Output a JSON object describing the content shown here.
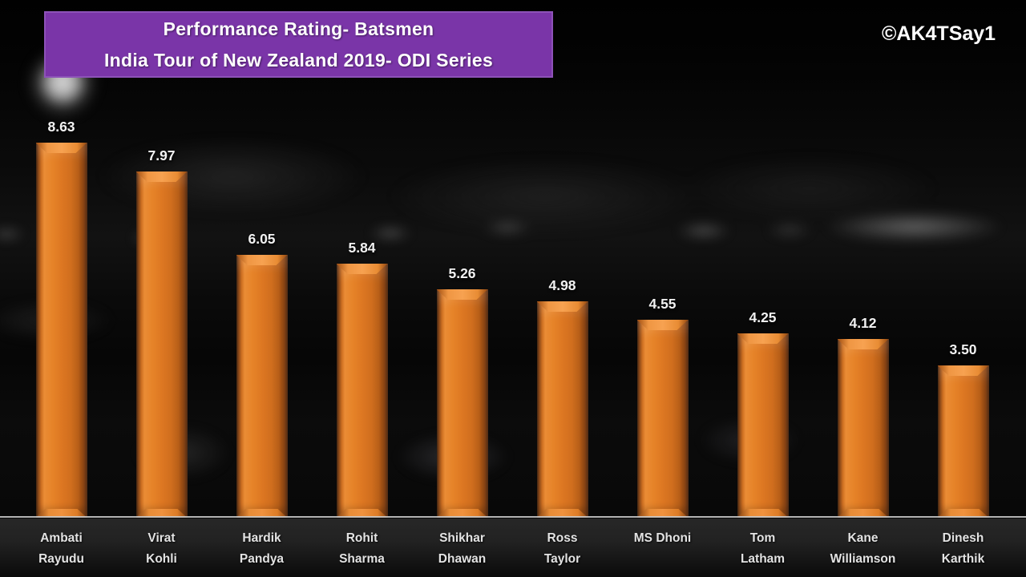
{
  "title": {
    "line1": "Performance Rating- Batsmen",
    "line2": "India Tour of New Zealand 2019- ODI Series",
    "bg_color": "#7a35a8",
    "border_color": "#8d52b8",
    "text_color": "#ffffff"
  },
  "watermark": "©AK4TSay1",
  "colors": {
    "bar_fill": "#dd7722",
    "bar_highlight": "#f7a251",
    "bar_shadow": "#50250a",
    "axis_line": "#c8c8c8",
    "background": "#000000",
    "value_text": "#f2f2f2",
    "category_text": "#e3e3e3"
  },
  "chart_data": {
    "type": "bar",
    "title": "Performance Rating- Batsmen",
    "subtitle": "India Tour of New Zealand 2019- ODI Series",
    "categories": [
      "Ambati Rayudu",
      "Virat Kohli",
      "Hardik Pandya",
      "Rohit Sharma",
      "Shikhar Dhawan",
      "Ross Taylor",
      "MS Dhoni",
      "Tom Latham",
      "Kane Williamson",
      "Dinesh Karthik"
    ],
    "category_lines": [
      [
        "Ambati",
        "Rayudu"
      ],
      [
        "Virat",
        "Kohli"
      ],
      [
        "Hardik",
        "Pandya"
      ],
      [
        "Rohit",
        "Sharma"
      ],
      [
        "Shikhar",
        "Dhawan"
      ],
      [
        "Ross",
        "Taylor"
      ],
      [
        "MS Dhoni"
      ],
      [
        "Tom",
        "Latham"
      ],
      [
        "Kane",
        "Williamson"
      ],
      [
        "Dinesh",
        "Karthik"
      ]
    ],
    "values": [
      8.63,
      7.97,
      6.05,
      5.84,
      5.26,
      4.98,
      4.55,
      4.25,
      4.12,
      3.5
    ],
    "value_labels": [
      "8.63",
      "7.97",
      "6.05",
      "5.84",
      "5.26",
      "4.98",
      "4.55",
      "4.25",
      "4.12",
      "3.50"
    ],
    "xlabel": "",
    "ylabel": "",
    "ylim": [
      0,
      8.63
    ],
    "grid": false,
    "legend": "none",
    "bar_style": "3d-bevel-orange",
    "value_labels_position": "above-bar"
  }
}
